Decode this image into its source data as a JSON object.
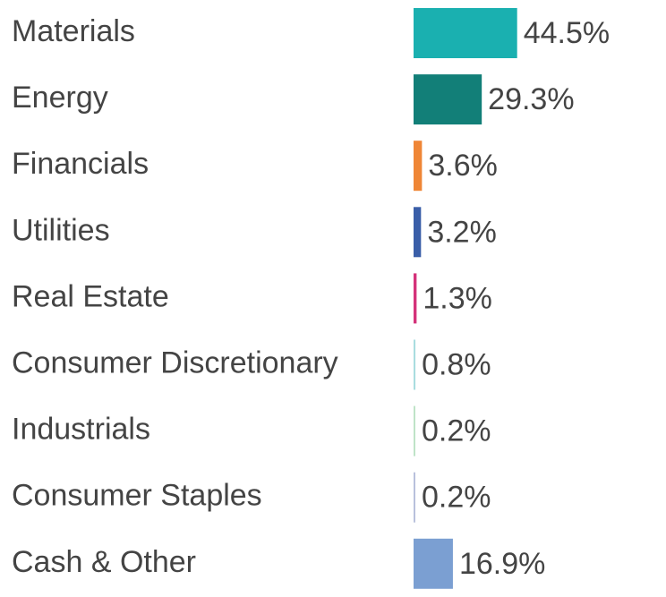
{
  "chart_data": {
    "type": "bar",
    "orientation": "horizontal",
    "title": "",
    "xlabel": "",
    "ylabel": "",
    "xlim": [
      0,
      100
    ],
    "grid": false,
    "categories": [
      "Materials",
      "Energy",
      "Financials",
      "Utilities",
      "Real Estate",
      "Consumer Discretionary",
      "Industrials",
      "Consumer Staples",
      "Cash & Other"
    ],
    "values": [
      44.5,
      29.3,
      3.6,
      3.2,
      1.3,
      0.8,
      0.2,
      0.2,
      16.9
    ],
    "value_labels": [
      "44.5%",
      "29.3%",
      "3.6%",
      "3.2%",
      "1.3%",
      "0.8%",
      "0.2%",
      "0.2%",
      "16.9%"
    ],
    "colors": [
      "#1ab0b0",
      "#127f78",
      "#ef8636",
      "#3a5ea8",
      "#d4327a",
      "#a9dde0",
      "#bfe3c8",
      "#b9c1dc",
      "#7b9fd2"
    ]
  }
}
